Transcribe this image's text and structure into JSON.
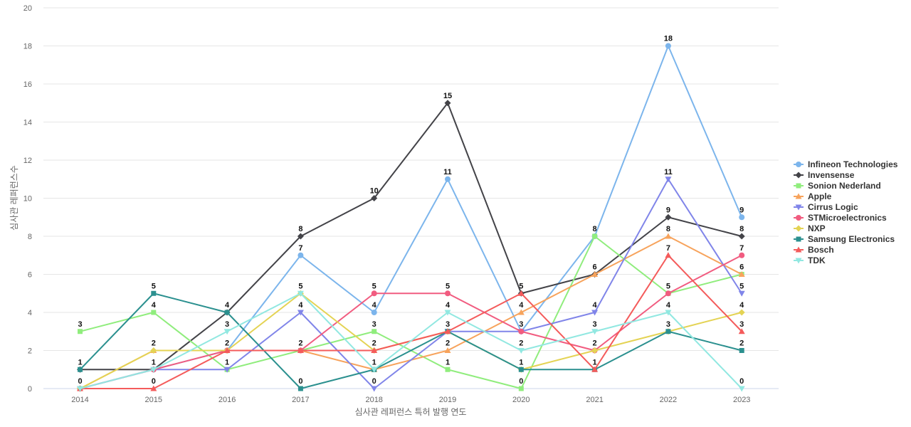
{
  "chart_data": {
    "type": "line",
    "xlabel": "심사관 레퍼런스 특허 발행 연도",
    "ylabel": "심사관 레퍼런스수",
    "x": [
      "2014",
      "2015",
      "2016",
      "2017",
      "2018",
      "2019",
      "2020",
      "2021",
      "2022",
      "2023"
    ],
    "ylim": [
      0,
      20
    ],
    "yticks": [
      0,
      2,
      4,
      6,
      8,
      10,
      12,
      14,
      16,
      18,
      20
    ],
    "grid": true,
    "legend_position": "right",
    "series": [
      {
        "name": "Infineon Technologies",
        "color": "#7cb5ec",
        "marker": "circle",
        "values": [
          0,
          1,
          2,
          7,
          4,
          11,
          3,
          8,
          18,
          9
        ]
      },
      {
        "name": "Invensense",
        "color": "#434348",
        "marker": "diamond",
        "values": [
          1,
          1,
          4,
          8,
          10,
          15,
          5,
          6,
          9,
          8
        ]
      },
      {
        "name": "Sonion Nederland",
        "color": "#90ed7d",
        "marker": "square",
        "values": [
          3,
          4,
          1,
          2,
          3,
          1,
          0,
          8,
          5,
          6
        ]
      },
      {
        "name": "Apple",
        "color": "#f7a35c",
        "marker": "triangle",
        "values": [
          0,
          2,
          2,
          2,
          1,
          2,
          4,
          6,
          8,
          6
        ]
      },
      {
        "name": "Cirrus Logic",
        "color": "#8085e9",
        "marker": "triangle-down",
        "values": [
          0,
          1,
          1,
          4,
          0,
          3,
          3,
          4,
          11,
          5
        ]
      },
      {
        "name": "STMicroelectronics",
        "color": "#f15c80",
        "marker": "circle",
        "values": [
          0,
          1,
          2,
          2,
          5,
          5,
          3,
          2,
          5,
          7
        ]
      },
      {
        "name": "NXP",
        "color": "#e4d354",
        "marker": "diamond",
        "values": [
          0,
          2,
          2,
          5,
          2,
          3,
          1,
          2,
          3,
          4
        ]
      },
      {
        "name": "Samsung Electronics",
        "color": "#2b908f",
        "marker": "square",
        "values": [
          1,
          5,
          4,
          0,
          1,
          3,
          1,
          1,
          3,
          2
        ]
      },
      {
        "name": "Bosch",
        "color": "#f45b5b",
        "marker": "triangle",
        "values": [
          0,
          0,
          2,
          2,
          2,
          3,
          5,
          1,
          7,
          3
        ]
      },
      {
        "name": "TDK",
        "color": "#91e8e1",
        "marker": "triangle-down",
        "values": [
          0,
          1,
          3,
          5,
          1,
          4,
          2,
          3,
          4,
          0
        ]
      }
    ],
    "data_labels": [
      {
        "x": "2014",
        "text": "3",
        "y": 3
      },
      {
        "x": "2014",
        "text": "1",
        "y": 1
      },
      {
        "x": "2014",
        "text": "0",
        "y": 0
      },
      {
        "x": "2015",
        "text": "5",
        "y": 5
      },
      {
        "x": "2015",
        "text": "4",
        "y": 4
      },
      {
        "x": "2015",
        "text": "2",
        "y": 2
      },
      {
        "x": "2015",
        "text": "1",
        "y": 1
      },
      {
        "x": "2015",
        "text": "0",
        "y": 0
      },
      {
        "x": "2016",
        "text": "4",
        "y": 4
      },
      {
        "x": "2016",
        "text": "3",
        "y": 3
      },
      {
        "x": "2016",
        "text": "2",
        "y": 2
      },
      {
        "x": "2016",
        "text": "1",
        "y": 1
      },
      {
        "x": "2017",
        "text": "8",
        "y": 8
      },
      {
        "x": "2017",
        "text": "7",
        "y": 7
      },
      {
        "x": "2017",
        "text": "5",
        "y": 5
      },
      {
        "x": "2017",
        "text": "4",
        "y": 4
      },
      {
        "x": "2017",
        "text": "2",
        "y": 2
      },
      {
        "x": "2017",
        "text": "0",
        "y": 0
      },
      {
        "x": "2018",
        "text": "10",
        "y": 10
      },
      {
        "x": "2018",
        "text": "5",
        "y": 5
      },
      {
        "x": "2018",
        "text": "4",
        "y": 4
      },
      {
        "x": "2018",
        "text": "3",
        "y": 3
      },
      {
        "x": "2018",
        "text": "2",
        "y": 2
      },
      {
        "x": "2018",
        "text": "1",
        "y": 1
      },
      {
        "x": "2018",
        "text": "0",
        "y": 0
      },
      {
        "x": "2019",
        "text": "15",
        "y": 15
      },
      {
        "x": "2019",
        "text": "11",
        "y": 11
      },
      {
        "x": "2019",
        "text": "5",
        "y": 5
      },
      {
        "x": "2019",
        "text": "4",
        "y": 4
      },
      {
        "x": "2019",
        "text": "3",
        "y": 3
      },
      {
        "x": "2019",
        "text": "2",
        "y": 2
      },
      {
        "x": "2019",
        "text": "1",
        "y": 1
      },
      {
        "x": "2020",
        "text": "5",
        "y": 5
      },
      {
        "x": "2020",
        "text": "4",
        "y": 4
      },
      {
        "x": "2020",
        "text": "3",
        "y": 3
      },
      {
        "x": "2020",
        "text": "2",
        "y": 2
      },
      {
        "x": "2020",
        "text": "1",
        "y": 1
      },
      {
        "x": "2020",
        "text": "0",
        "y": 0
      },
      {
        "x": "2021",
        "text": "8",
        "y": 8
      },
      {
        "x": "2021",
        "text": "6",
        "y": 6
      },
      {
        "x": "2021",
        "text": "4",
        "y": 4
      },
      {
        "x": "2021",
        "text": "3",
        "y": 3
      },
      {
        "x": "2021",
        "text": "2",
        "y": 2
      },
      {
        "x": "2021",
        "text": "1",
        "y": 1
      },
      {
        "x": "2022",
        "text": "18",
        "y": 18
      },
      {
        "x": "2022",
        "text": "11",
        "y": 11
      },
      {
        "x": "2022",
        "text": "9",
        "y": 9
      },
      {
        "x": "2022",
        "text": "8",
        "y": 8
      },
      {
        "x": "2022",
        "text": "7",
        "y": 7
      },
      {
        "x": "2022",
        "text": "5",
        "y": 5
      },
      {
        "x": "2022",
        "text": "4",
        "y": 4
      },
      {
        "x": "2022",
        "text": "3",
        "y": 3
      },
      {
        "x": "2023",
        "text": "9",
        "y": 9
      },
      {
        "x": "2023",
        "text": "8",
        "y": 8
      },
      {
        "x": "2023",
        "text": "7",
        "y": 7
      },
      {
        "x": "2023",
        "text": "6",
        "y": 6
      },
      {
        "x": "2023",
        "text": "5",
        "y": 5
      },
      {
        "x": "2023",
        "text": "4",
        "y": 4
      },
      {
        "x": "2023",
        "text": "3",
        "y": 3
      },
      {
        "x": "2023",
        "text": "2",
        "y": 2
      },
      {
        "x": "2023",
        "text": "0",
        "y": 0
      }
    ]
  }
}
